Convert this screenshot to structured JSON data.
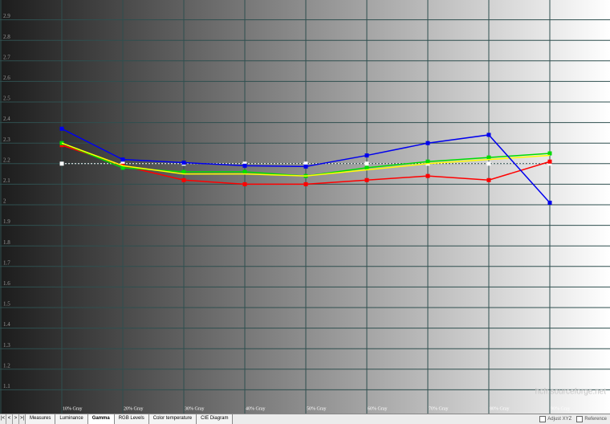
{
  "chart_data": {
    "type": "line",
    "categories": [
      "10% Gray",
      "20% Gray",
      "30% Gray",
      "40% Gray",
      "50% Gray",
      "60% Gray",
      "70% Gray",
      "80% Gray",
      "90% Gray"
    ],
    "ylim": [
      1,
      3
    ],
    "yticks": [
      1.1,
      1.2,
      1.3,
      1.4,
      1.5,
      1.6,
      1.7,
      1.8,
      1.9,
      2,
      2.1,
      2.2,
      2.3,
      2.4,
      2.5,
      2.6,
      2.7,
      2.8,
      2.9
    ],
    "grid": true,
    "watermark": "hcfr.sourceforge.net",
    "series": [
      {
        "color": "#ffffff",
        "line_style": "dotted",
        "markers": true,
        "values": [
          2.2,
          2.2,
          2.2,
          2.2,
          2.2,
          2.2,
          2.2,
          2.2,
          2.2
        ]
      },
      {
        "color": "#ff0000",
        "line_style": "solid",
        "markers": true,
        "values": [
          2.29,
          2.19,
          2.12,
          2.1,
          2.1,
          2.12,
          2.14,
          2.12,
          2.21
        ]
      },
      {
        "color": "#00dd00",
        "line_style": "solid",
        "markers": true,
        "values": [
          2.3,
          2.18,
          2.16,
          2.16,
          2.14,
          2.18,
          2.21,
          2.23,
          2.25
        ]
      },
      {
        "color": "#ffff00",
        "line_style": "solid",
        "markers": false,
        "values": [
          2.3,
          2.19,
          2.15,
          2.15,
          2.14,
          2.17,
          2.2,
          2.22,
          2.24
        ]
      },
      {
        "color": "#0000ee",
        "line_style": "solid",
        "markers": true,
        "values": [
          2.37,
          2.22,
          2.205,
          2.19,
          2.186,
          2.24,
          2.3,
          2.34,
          2.01
        ]
      }
    ]
  },
  "tabs": [
    "Measures",
    "Luminance",
    "Gamma",
    "RGB Levels",
    "Color temperature",
    "CIE Diagram"
  ],
  "selected_tab": 2,
  "options": [
    "Adjust XYZ",
    "Reference"
  ]
}
